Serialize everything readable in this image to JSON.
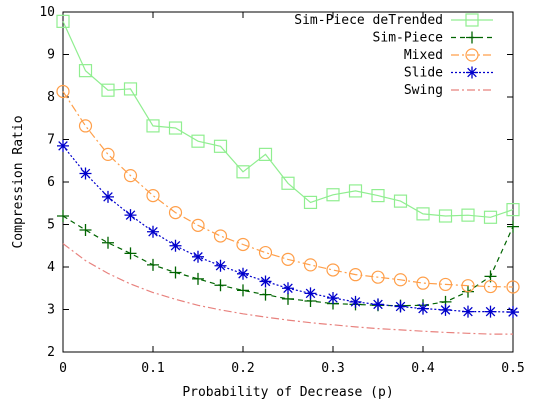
{
  "chart_data": {
    "type": "line",
    "xlabel": "Probability of Decrease (p)",
    "ylabel": "Compression Ratio",
    "xlim": [
      0,
      0.5
    ],
    "ylim": [
      2,
      10
    ],
    "x_ticks": [
      "0",
      "0.1",
      "0.2",
      "0.3",
      "0.4",
      "0.5"
    ],
    "y_ticks": [
      "2",
      "3",
      "4",
      "5",
      "6",
      "7",
      "8",
      "9",
      "10"
    ],
    "grid": false,
    "legend_position": "top-right",
    "x": [
      0,
      0.025,
      0.05,
      0.075,
      0.1,
      0.125,
      0.15,
      0.175,
      0.2,
      0.225,
      0.25,
      0.275,
      0.3,
      0.325,
      0.35,
      0.375,
      0.4,
      0.425,
      0.45,
      0.475,
      0.5
    ],
    "series": [
      {
        "name": "Sim-Piece deTrended",
        "color": "#90ee90",
        "marker": "square",
        "dash": "solid",
        "values": [
          9.78,
          8.62,
          8.16,
          8.19,
          7.32,
          7.27,
          6.96,
          6.84,
          6.24,
          6.65,
          5.97,
          5.52,
          5.7,
          5.79,
          5.68,
          5.55,
          5.25,
          5.2,
          5.22,
          5.17,
          5.35
        ]
      },
      {
        "name": "Sim-Piece",
        "color": "#006400",
        "marker": "plus",
        "dash": "5,4",
        "values": [
          5.2,
          4.87,
          4.57,
          4.32,
          4.05,
          3.87,
          3.72,
          3.57,
          3.45,
          3.35,
          3.25,
          3.2,
          3.14,
          3.12,
          3.1,
          3.09,
          3.1,
          3.18,
          3.42,
          3.78,
          4.95
        ]
      },
      {
        "name": "Mixed",
        "color": "#ff9f4a",
        "marker": "circle",
        "dash": "8,3,2,3",
        "values": [
          8.13,
          7.32,
          6.65,
          6.15,
          5.68,
          5.28,
          4.98,
          4.73,
          4.53,
          4.34,
          4.18,
          4.05,
          3.93,
          3.82,
          3.76,
          3.7,
          3.62,
          3.59,
          3.56,
          3.54,
          3.53
        ]
      },
      {
        "name": "Slide",
        "color": "#0000cc",
        "marker": "star",
        "dash": "2,2",
        "values": [
          6.85,
          6.2,
          5.65,
          5.22,
          4.83,
          4.5,
          4.24,
          4.03,
          3.84,
          3.66,
          3.5,
          3.38,
          3.27,
          3.18,
          3.12,
          3.07,
          3.02,
          2.99,
          2.95,
          2.95,
          2.94
        ]
      },
      {
        "name": "Swing",
        "color": "#e8827e",
        "marker": "none",
        "dash": "8,3,2,3",
        "values": [
          4.55,
          4.15,
          3.85,
          3.6,
          3.4,
          3.24,
          3.1,
          2.99,
          2.9,
          2.82,
          2.75,
          2.69,
          2.64,
          2.59,
          2.55,
          2.52,
          2.49,
          2.46,
          2.44,
          2.42,
          2.42
        ]
      }
    ]
  }
}
